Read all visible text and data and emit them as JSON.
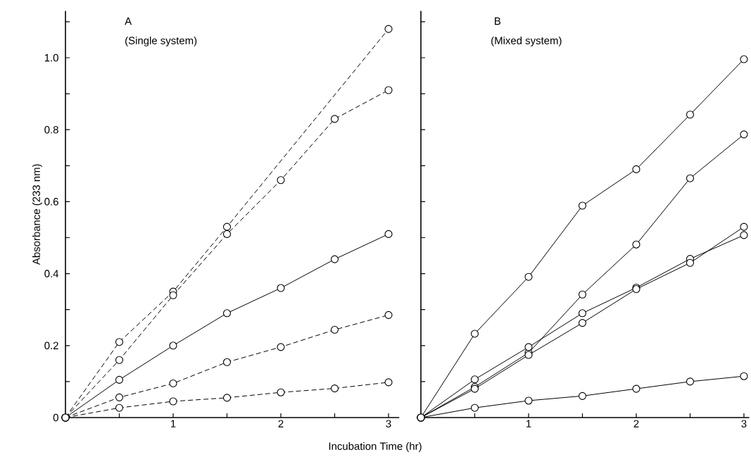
{
  "chart_data": [
    {
      "type": "line",
      "xlabel": "Incubation Time (hr)",
      "ylabel": "Absorbance (233 nm)",
      "annotations": [
        "A",
        "(Single system)"
      ],
      "xlim": [
        0,
        3.1
      ],
      "ylim": [
        0,
        1.13
      ],
      "marker": "circle",
      "xticks": [
        {
          "value": 0.5,
          "label": null
        },
        1,
        {
          "value": 1.5,
          "label": null
        },
        2,
        {
          "value": 2.5,
          "label": null
        },
        3
      ],
      "yticks": [
        {
          "value": 0,
          "label": "0"
        },
        {
          "value": 0.1,
          "label": null
        },
        {
          "value": 0.2,
          "label": "0.2"
        },
        {
          "value": 0.3,
          "label": null
        },
        {
          "value": 0.4,
          "label": "0.4"
        },
        {
          "value": 0.5,
          "label": null
        },
        {
          "value": 0.6,
          "label": "0.6"
        },
        {
          "value": 0.7,
          "label": null
        },
        {
          "value": 0.8,
          "label": "0.8"
        },
        {
          "value": 0.9,
          "label": null
        },
        {
          "value": 1.0,
          "label": "1.0"
        },
        {
          "value": 1.1,
          "label": null
        }
      ],
      "series": [
        {
          "color": "#000000",
          "line_style": "dashed",
          "x": [
            0,
            0.5,
            1,
            1.5,
            3
          ],
          "values": [
            0,
            0.21,
            0.35,
            0.53,
            1.08
          ]
        },
        {
          "color": "#000000",
          "line_style": "dashed",
          "x": [
            0,
            0.5,
            1,
            1.5,
            2,
            2.5,
            3
          ],
          "values": [
            0,
            0.16,
            0.34,
            0.51,
            0.66,
            0.83,
            0.91
          ]
        },
        {
          "color": "#000000",
          "line_style": "solid",
          "x": [
            0,
            0.5,
            1,
            1.5,
            2,
            2.5,
            3
          ],
          "values": [
            0,
            0.105,
            0.2,
            0.29,
            0.36,
            0.44,
            0.51
          ]
        },
        {
          "color": "#000000",
          "line_style": "dashed",
          "x": [
            0,
            0.5,
            1,
            1.5,
            2,
            2.5,
            3
          ],
          "values": [
            0,
            0.056,
            0.095,
            0.154,
            0.196,
            0.244,
            0.285
          ]
        },
        {
          "color": "#000000",
          "line_style": "dashed",
          "x": [
            0,
            0.5,
            1,
            1.5,
            2,
            2.5,
            3
          ],
          "values": [
            0,
            0.027,
            0.045,
            0.055,
            0.07,
            0.081,
            0.098
          ]
        }
      ]
    },
    {
      "type": "line",
      "annotations": [
        "B",
        "(Mixed system)"
      ],
      "tick_labels": "x",
      "xlim": [
        0,
        3.05
      ],
      "ylim": [
        0,
        1.13
      ],
      "marker": "circle",
      "xticks": [
        {
          "value": 0.5,
          "label": null
        },
        1,
        {
          "value": 1.5,
          "label": null
        },
        2,
        {
          "value": 2.5,
          "label": null
        },
        3
      ],
      "yticks": [
        {
          "value": 0.1,
          "label": null
        },
        {
          "value": 0.2,
          "label": null
        },
        {
          "value": 0.3,
          "label": null
        },
        {
          "value": 0.4,
          "label": null
        },
        {
          "value": 0.5,
          "label": null
        },
        {
          "value": 0.6,
          "label": null
        },
        {
          "value": 0.7,
          "label": null
        },
        {
          "value": 0.8,
          "label": null
        },
        {
          "value": 0.9,
          "label": null
        },
        {
          "value": 1.0,
          "label": null
        },
        {
          "value": 1.1,
          "label": null
        }
      ],
      "series": [
        {
          "color": "#000000",
          "line_style": "solid",
          "x": [
            0,
            0.5,
            1,
            1.5,
            2,
            2.5,
            3
          ],
          "values": [
            0,
            0.233,
            0.391,
            0.589,
            0.69,
            0.842,
            0.996
          ]
        },
        {
          "color": "#000000",
          "line_style": "solid",
          "x": [
            0,
            0.5,
            1,
            1.5,
            2,
            2.5,
            3
          ],
          "values": [
            0,
            0.085,
            0.18,
            0.342,
            0.481,
            0.665,
            0.787
          ]
        },
        {
          "color": "#000000",
          "line_style": "solid",
          "x": [
            0,
            0.5,
            1,
            1.5,
            2,
            2.5,
            3
          ],
          "values": [
            0,
            0.106,
            0.196,
            0.29,
            0.361,
            0.441,
            0.507
          ]
        },
        {
          "color": "#000000",
          "line_style": "solid",
          "x": [
            0,
            0.5,
            1,
            1.5,
            2,
            2.5,
            3
          ],
          "values": [
            0,
            0.08,
            0.174,
            0.263,
            0.357,
            0.43,
            0.53
          ]
        },
        {
          "color": "#000000",
          "line_style": "solid",
          "x": [
            0,
            0.5,
            1,
            1.5,
            2,
            2.5,
            3
          ],
          "values": [
            0,
            0.027,
            0.047,
            0.06,
            0.08,
            0.1,
            0.115
          ]
        }
      ]
    }
  ]
}
